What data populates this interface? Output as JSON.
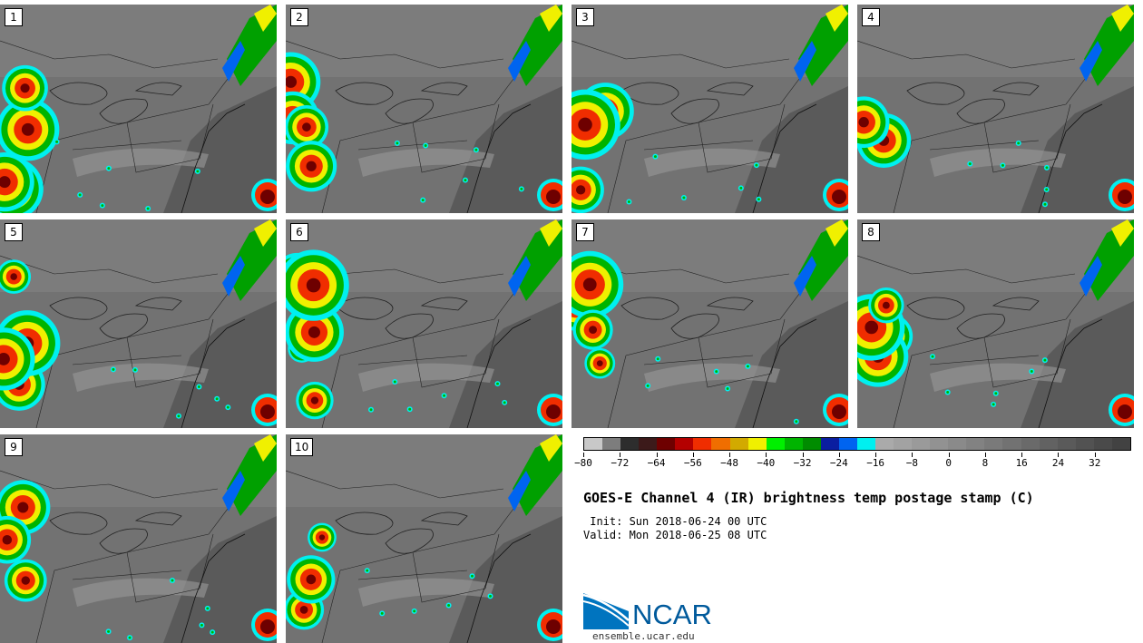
{
  "panels": [
    {
      "label": "1"
    },
    {
      "label": "2"
    },
    {
      "label": "3"
    },
    {
      "label": "4"
    },
    {
      "label": "5"
    },
    {
      "label": "6"
    },
    {
      "label": "7"
    },
    {
      "label": "8"
    },
    {
      "label": "9"
    },
    {
      "label": "10"
    }
  ],
  "colorbar": {
    "min": -80,
    "max": 40,
    "step": 4,
    "tick_labels": [
      "−80",
      "−72",
      "−64",
      "−56",
      "−48",
      "−40",
      "−32",
      "−24",
      "−16",
      "−8",
      "0",
      "8",
      "16",
      "24",
      "32"
    ],
    "tick_values": [
      -80,
      -72,
      -64,
      -56,
      -48,
      -40,
      -32,
      -24,
      -16,
      -8,
      0,
      8,
      16,
      24,
      32
    ],
    "colors": [
      "#c8c8c8",
      "#7d7d7d",
      "#2d2d2d",
      "#3c1a1a",
      "#6e0000",
      "#b40000",
      "#f02d00",
      "#f06e00",
      "#d2aa00",
      "#f0f000",
      "#00f000",
      "#00b400",
      "#008c00",
      "#0a1ea0",
      "#0064f0",
      "#00f0f0",
      "#aaaaaa",
      "#a2a2a2",
      "#9a9a9a",
      "#929292",
      "#8a8a8a",
      "#828282",
      "#7a7a7a",
      "#727272",
      "#6a6a6a",
      "#626262",
      "#5a5a5a",
      "#525252",
      "#4a4a4a",
      "#424242"
    ]
  },
  "title": "GOES-E Channel 4 (IR) brightness temp postage stamp (C)",
  "init": " Init: Sun 2018-06-24 00 UTC",
  "valid": "Valid: Mon 2018-06-25 08 UTC",
  "logo": {
    "text": "NCAR",
    "color": "#005a9c"
  },
  "website": "ensemble.ucar.edu"
}
